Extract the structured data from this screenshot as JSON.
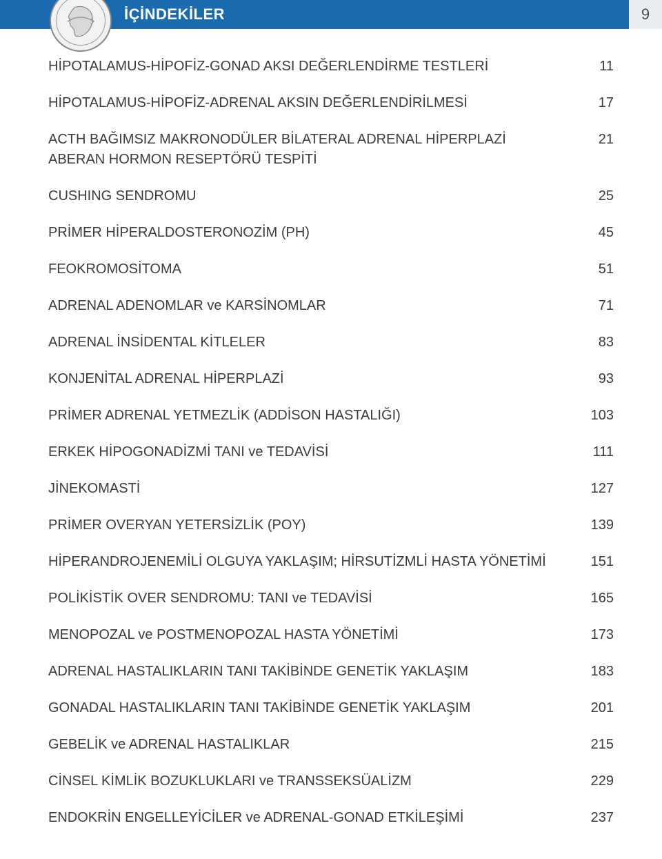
{
  "header": {
    "title": "İÇİNDEKİLER",
    "page_number": "9",
    "bar_color": "#1a6aaf",
    "page_box_bg": "#e9eef3",
    "title_color": "#ffffff",
    "title_fontsize": 22
  },
  "toc": {
    "text_color": "#3b3b3b",
    "fontsize": 20,
    "items": [
      {
        "label": "HİPOTALAMUS-HİPOFİZ-GONAD AKSI DEĞERLENDİRME TESTLERİ",
        "page": "11"
      },
      {
        "label": "HİPOTALAMUS-HİPOFİZ-ADRENAL AKSIN DEĞERLENDİRİLMESİ",
        "page": "17"
      },
      {
        "label": "ACTH BAĞIMSIZ MAKRONODÜLER BİLATERAL ADRENAL HİPERPLAZİ ABERAN HORMON RESEPTÖRÜ TESPİTİ",
        "page": "21"
      },
      {
        "label": "CUSHING SENDROMU",
        "page": "25"
      },
      {
        "label": "PRİMER HİPERALDOSTERONOZİM (PH)",
        "page": "45"
      },
      {
        "label": "FEOKROMOSİTOMA",
        "page": "51"
      },
      {
        "label": "ADRENAL ADENOMLAR ve KARSİNOMLAR",
        "page": "71"
      },
      {
        "label": "ADRENAL İNSİDENTAL KİTLELER",
        "page": "83"
      },
      {
        "label": "KONJENİTAL ADRENAL HİPERPLAZİ",
        "page": "93"
      },
      {
        "label": "PRİMER ADRENAL YETMEZLİK (ADDİSON HASTALIĞI)",
        "page": "103"
      },
      {
        "label": "ERKEK HİPOGONADİZMİ TANI ve TEDAVİSİ",
        "page": "111"
      },
      {
        "label": "JİNEKOMASTİ",
        "page": "127"
      },
      {
        "label": "PRİMER OVERYAN YETERSİZLİK (POY)",
        "page": "139"
      },
      {
        "label": "HİPERANDROJENEMİLİ OLGUYA YAKLAŞIM; HİRSUTİZMLİ HASTA YÖNETİMİ",
        "page": "151"
      },
      {
        "label": "POLİKİSTİK OVER SENDROMU: TANI ve TEDAVİSİ",
        "page": "165"
      },
      {
        "label": "MENOPOZAL ve POSTMENOPOZAL HASTA YÖNETİMİ",
        "page": "173"
      },
      {
        "label": "ADRENAL HASTALIKLARIN TANI TAKİBİNDE  GENETİK YAKLAŞIM",
        "page": "183"
      },
      {
        "label": "GONADAL HASTALIKLARIN TANI TAKİBİNDE  GENETİK YAKLAŞIM",
        "page": "201"
      },
      {
        "label": "GEBELİK ve ADRENAL HASTALIKLAR",
        "page": "215"
      },
      {
        "label": "CİNSEL KİMLİK BOZUKLUKLARI ve TRANSSEKSÜALİZM",
        "page": "229"
      },
      {
        "label": "ENDOKRİN ENGELLEYİCİLER ve ADRENAL-GONAD ETKİLEŞİMİ",
        "page": "237"
      }
    ]
  }
}
